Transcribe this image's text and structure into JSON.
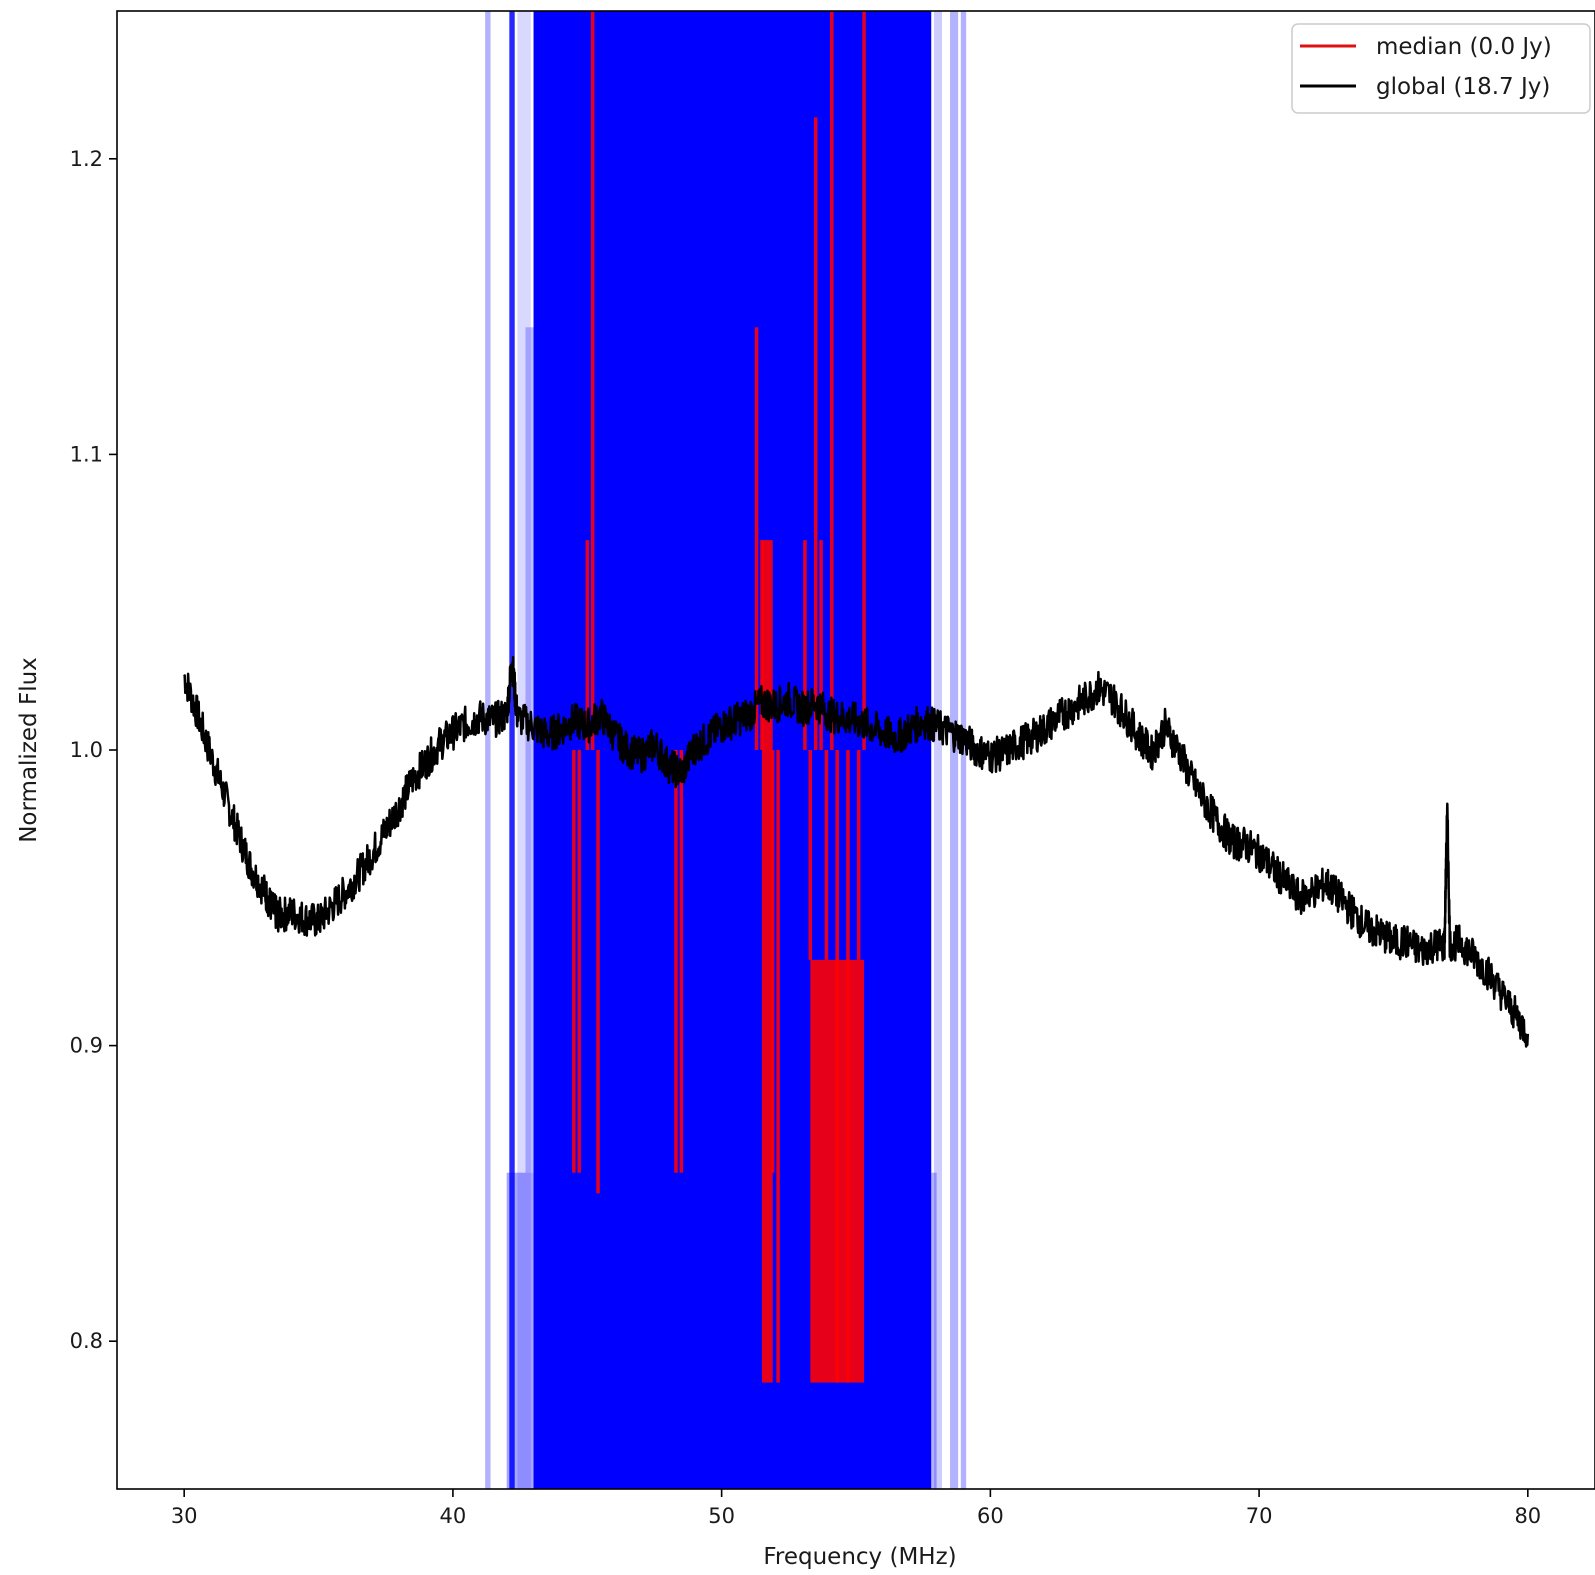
{
  "chart_data": {
    "type": "line",
    "title": "",
    "xlabel": "Frequency (MHz)",
    "ylabel": "Normalized Flux",
    "xlim": [
      27.5,
      82.5
    ],
    "ylim": [
      0.75,
      1.25
    ],
    "x_ticks": [
      30,
      40,
      50,
      60,
      70,
      80
    ],
    "x_tick_labels": [
      "30",
      "40",
      "50",
      "60",
      "70",
      "80"
    ],
    "y_ticks": [
      0.8,
      0.9,
      1.0,
      1.1,
      1.2
    ],
    "y_tick_labels": [
      "0.8",
      "0.9",
      "1.0",
      "1.1",
      "1.2"
    ],
    "grid": false,
    "legend": {
      "position": "top-right",
      "entries": [
        {
          "label": "median (0.0 Jy)",
          "color": "#dd1111"
        },
        {
          "label": "global (18.7 Jy)",
          "color": "#000000"
        }
      ]
    },
    "colors": {
      "median": "#ff0000",
      "global": "#000000",
      "flag": "#0000ff"
    },
    "flag_spans": [
      {
        "x0": 41.2,
        "x1": 41.4,
        "alpha": 0.3
      },
      {
        "x0": 42.1,
        "x1": 42.3,
        "alpha": 0.85
      },
      {
        "x0": 42.4,
        "x1": 42.9,
        "alpha": 0.15
      },
      {
        "x0": 43.0,
        "x1": 57.8,
        "alpha": 1.0
      },
      {
        "x0": 57.9,
        "x1": 58.2,
        "alpha": 0.2
      },
      {
        "x0": 58.5,
        "x1": 58.8,
        "alpha": 0.3
      },
      {
        "x0": 58.9,
        "x1": 59.1,
        "alpha": 0.3
      }
    ],
    "flag_boxes": [
      {
        "x0": 42.0,
        "x1": 43.0,
        "y0": 0.75,
        "y1": 0.857,
        "alpha": 0.35
      },
      {
        "x0": 42.7,
        "x1": 44.5,
        "y0": 0.857,
        "y1": 1.143,
        "alpha": 0.25
      },
      {
        "x0": 57.8,
        "x1": 58.0,
        "y0": 0.75,
        "y1": 0.857,
        "alpha": 0.3
      }
    ],
    "series": [
      {
        "name": "global (18.7 Jy)",
        "color": "#000000",
        "x": [
          30.0,
          30.5,
          31.0,
          31.5,
          32.0,
          32.5,
          33.0,
          33.3,
          33.5,
          34.0,
          34.5,
          35.0,
          35.5,
          36.0,
          36.5,
          37.0,
          37.5,
          38.0,
          38.5,
          39.0,
          39.5,
          40.0,
          40.5,
          41.0,
          41.5,
          42.0,
          42.2,
          42.4,
          43.0,
          43.5,
          44.0,
          44.5,
          45.0,
          45.5,
          46.0,
          46.5,
          47.0,
          47.5,
          48.0,
          48.5,
          49.0,
          49.5,
          50.0,
          50.5,
          51.0,
          51.5,
          52.0,
          52.5,
          53.0,
          53.5,
          54.0,
          54.5,
          55.0,
          55.5,
          56.0,
          56.5,
          57.0,
          57.5,
          58.0,
          58.5,
          59.0,
          59.5,
          60.0,
          60.5,
          61.0,
          61.5,
          62.0,
          62.5,
          63.0,
          63.5,
          64.0,
          64.5,
          65.0,
          65.5,
          66.0,
          66.5,
          67.0,
          67.5,
          68.0,
          68.5,
          69.0,
          69.5,
          70.0,
          70.5,
          71.0,
          71.5,
          72.0,
          72.5,
          73.0,
          73.5,
          74.0,
          74.5,
          75.0,
          75.5,
          76.0,
          76.5,
          76.9,
          77.0,
          77.1,
          77.5,
          78.0,
          78.5,
          79.0,
          79.5,
          80.0
        ],
        "values": [
          1.025,
          1.012,
          0.998,
          0.985,
          0.972,
          0.96,
          0.952,
          0.946,
          0.944,
          0.945,
          0.943,
          0.942,
          0.947,
          0.952,
          0.958,
          0.965,
          0.973,
          0.981,
          0.99,
          0.996,
          1.002,
          1.006,
          1.009,
          1.011,
          1.01,
          1.012,
          1.03,
          1.011,
          1.008,
          1.005,
          1.007,
          1.01,
          1.008,
          1.012,
          1.005,
          1.0,
          0.998,
          1.002,
          0.995,
          0.992,
          1.001,
          1.004,
          1.008,
          1.01,
          1.012,
          1.016,
          1.015,
          1.017,
          1.014,
          1.016,
          1.012,
          1.011,
          1.01,
          1.008,
          1.006,
          1.004,
          1.007,
          1.01,
          1.008,
          1.006,
          1.004,
          1.0,
          0.998,
          0.999,
          1.002,
          1.004,
          1.007,
          1.011,
          1.014,
          1.017,
          1.021,
          1.018,
          1.012,
          1.005,
          0.999,
          1.008,
          1.0,
          0.99,
          0.982,
          0.975,
          0.969,
          0.968,
          0.965,
          0.96,
          0.955,
          0.95,
          0.952,
          0.955,
          0.95,
          0.945,
          0.94,
          0.938,
          0.935,
          0.935,
          0.932,
          0.934,
          0.934,
          0.98,
          0.934,
          0.935,
          0.93,
          0.925,
          0.918,
          0.911,
          0.904
        ]
      },
      {
        "name": "median (0.0 Jy)",
        "color": "#ff0000",
        "x": [
          44.5,
          44.7,
          45.0,
          45.2,
          45.4,
          48.3,
          48.5,
          51.3,
          51.5,
          51.7,
          51.9,
          52.1,
          52.3,
          53.1,
          53.3,
          53.5,
          53.7,
          53.9,
          54.1,
          54.3,
          54.5,
          54.7,
          54.9,
          55.1,
          55.3
        ],
        "values": [
          0.857,
          0.857,
          1.071,
          1.25,
          0.85,
          0.857,
          0.857,
          1.143,
          1.071,
          1.0,
          0.857,
          0.786,
          1.0,
          1.071,
          0.929,
          1.214,
          1.071,
          0.929,
          1.25,
          0.786,
          1.0,
          0.786,
          1.0,
          0.929,
          1.25
        ]
      }
    ]
  }
}
